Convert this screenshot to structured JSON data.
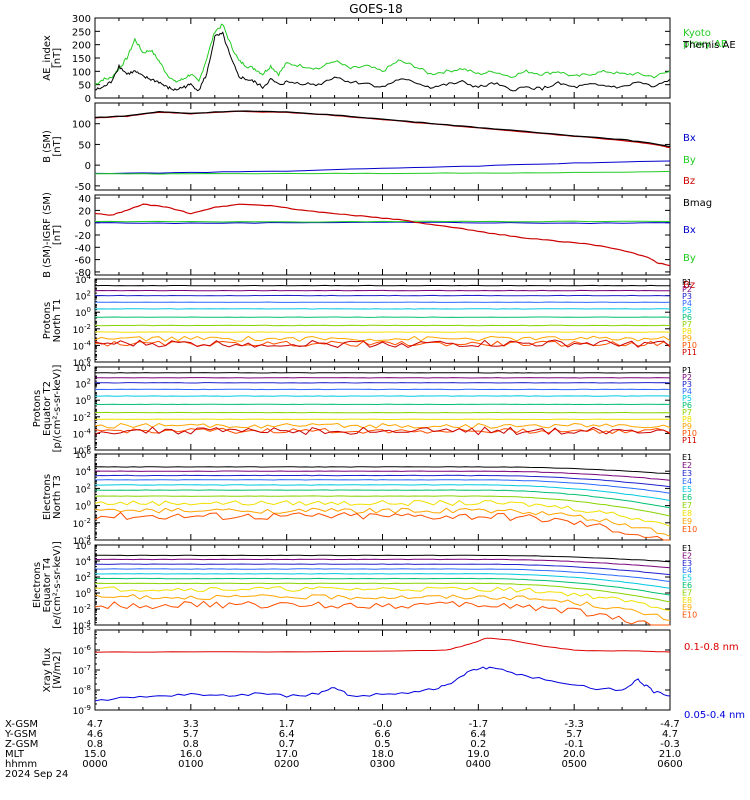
{
  "title": "GOES-18",
  "colors": {
    "ae_themis": "#000000",
    "ae_kyoto": "#22cc22",
    "bx": "#0000cc",
    "by": "#22cc22",
    "bz": "#cc0000",
    "bmag": "#000000",
    "xray_long": "#dd0000",
    "xray_short": "#0000dd"
  },
  "spectral_colors": [
    "#000000",
    "#7a007a",
    "#2020cc",
    "#2a6aff",
    "#00c8e0",
    "#00c070",
    "#88d400",
    "#f0e000",
    "#ffa500",
    "#ff5000",
    "#cc0000"
  ],
  "chart_data": [
    {
      "id": "ae",
      "type": "line",
      "ylabel": [
        "AE_index",
        "[nT]"
      ],
      "ylim": [
        0,
        300
      ],
      "yticks": [
        0,
        50,
        100,
        150,
        200,
        250,
        300
      ],
      "series": [
        {
          "name": "Kyoto proxy AE",
          "label_lines": [
            "Kyoto",
            "proxy AE"
          ],
          "color_key": "ae_kyoto",
          "x": [
            0,
            5,
            10,
            15,
            20,
            25,
            30,
            35,
            40,
            45,
            50,
            55,
            60,
            65,
            70,
            75,
            80,
            85,
            90,
            95,
            100,
            105,
            110,
            115,
            120,
            130,
            140,
            150,
            160,
            170,
            180,
            190,
            200,
            210,
            220,
            230,
            240,
            250,
            260,
            270,
            280,
            290,
            300,
            310,
            320,
            330,
            340,
            350,
            360
          ],
          "y": [
            50,
            70,
            75,
            110,
            150,
            220,
            170,
            180,
            140,
            90,
            60,
            70,
            90,
            60,
            150,
            250,
            275,
            200,
            140,
            120,
            110,
            90,
            120,
            90,
            130,
            120,
            110,
            140,
            110,
            120,
            100,
            140,
            120,
            90,
            100,
            110,
            90,
            100,
            80,
            100,
            90,
            100,
            80,
            90,
            100,
            90,
            90,
            80,
            100
          ]
        },
        {
          "name": "Themis AE",
          "label_lines": [
            "Themis AE"
          ],
          "color_key": "ae_themis",
          "x": [
            0,
            5,
            10,
            15,
            20,
            25,
            30,
            35,
            40,
            45,
            50,
            55,
            60,
            65,
            70,
            75,
            80,
            85,
            90,
            95,
            100,
            105,
            110,
            115,
            120,
            130,
            140,
            150,
            160,
            170,
            180,
            190,
            200,
            210,
            220,
            230,
            240,
            250,
            260,
            270,
            280,
            290,
            300,
            310,
            320,
            330,
            340,
            350,
            360
          ],
          "y": [
            30,
            40,
            60,
            120,
            90,
            100,
            80,
            70,
            60,
            40,
            30,
            40,
            50,
            30,
            90,
            230,
            240,
            150,
            80,
            70,
            60,
            40,
            70,
            50,
            60,
            55,
            50,
            80,
            60,
            55,
            40,
            70,
            60,
            40,
            50,
            60,
            40,
            55,
            30,
            40,
            35,
            55,
            40,
            50,
            45,
            40,
            60,
            40,
            70
          ]
        }
      ]
    },
    {
      "id": "bsm",
      "type": "line",
      "ylabel": [
        "B (SM)",
        "[nT]"
      ],
      "ylim": [
        -60,
        150
      ],
      "yticks": [
        -50,
        0,
        50,
        100
      ],
      "series": [
        {
          "name": "Bx",
          "color_key": "bx",
          "x": [
            0,
            60,
            120,
            180,
            240,
            300,
            360
          ],
          "y": [
            -20,
            -18,
            -14,
            -8,
            -2,
            5,
            10
          ]
        },
        {
          "name": "By",
          "color_key": "by",
          "x": [
            0,
            60,
            120,
            180,
            240,
            300,
            360
          ],
          "y": [
            -21,
            -21,
            -20,
            -20,
            -19,
            -18,
            -15
          ]
        },
        {
          "name": "Bz",
          "color_key": "bz",
          "x": [
            0,
            20,
            40,
            60,
            90,
            120,
            150,
            180,
            210,
            240,
            270,
            300,
            330,
            350,
            360
          ],
          "y": [
            114,
            118,
            128,
            124,
            130,
            127,
            120,
            110,
            100,
            90,
            80,
            70,
            60,
            50,
            42
          ]
        },
        {
          "name": "Bmag",
          "color_key": "bmag",
          "x": [
            0,
            20,
            40,
            60,
            90,
            120,
            150,
            180,
            210,
            240,
            270,
            300,
            330,
            350,
            360
          ],
          "y": [
            115,
            119,
            129,
            125,
            131,
            128,
            121,
            111,
            101,
            91,
            81,
            71,
            62,
            52,
            45
          ]
        }
      ]
    },
    {
      "id": "bigrf",
      "type": "line",
      "ylabel": [
        "B (SM)-IGRF (SM)",
        "[nT]"
      ],
      "ylim": [
        -85,
        45
      ],
      "yticks": [
        -80,
        -60,
        -40,
        -20,
        0,
        20,
        40
      ],
      "series": [
        {
          "name": "Bx",
          "color_key": "bx",
          "x": [
            0,
            60,
            120,
            180,
            240,
            300,
            360
          ],
          "y": [
            0,
            -1,
            0,
            1,
            0,
            -1,
            0
          ]
        },
        {
          "name": "By",
          "color_key": "by",
          "x": [
            0,
            60,
            120,
            180,
            240,
            300,
            360
          ],
          "y": [
            2,
            2,
            1,
            2,
            2,
            2,
            2
          ]
        },
        {
          "name": "Bz",
          "color_key": "bz",
          "x": [
            0,
            10,
            20,
            30,
            45,
            60,
            75,
            90,
            110,
            130,
            150,
            170,
            190,
            210,
            230,
            250,
            270,
            290,
            310,
            330,
            345,
            352,
            360
          ],
          "y": [
            15,
            12,
            20,
            30,
            25,
            15,
            25,
            30,
            28,
            20,
            15,
            10,
            5,
            -3,
            -10,
            -18,
            -25,
            -30,
            -35,
            -45,
            -55,
            -65,
            -70
          ]
        }
      ]
    },
    {
      "id": "protons_t1",
      "type": "line",
      "log": true,
      "ylabel": [
        "Protons",
        "North T1"
      ],
      "ylim_exp": [
        -6,
        4
      ],
      "yticks_exp": [
        -6,
        -4,
        -2,
        0,
        2,
        4
      ],
      "channels": [
        "P1",
        "P2",
        "P3",
        "P4",
        "P5",
        "P6",
        "P7",
        "P8",
        "P9",
        "P10",
        "P11"
      ],
      "levels_exp": [
        3.2,
        2.6,
        2.0,
        1.2,
        0.4,
        -0.6,
        -1.6,
        -2.4,
        -3.2,
        -3.8,
        -3.8
      ]
    },
    {
      "id": "protons_t2",
      "type": "line",
      "log": true,
      "ylabel": [
        "Protons",
        "Equator T2",
        "[p/(cm²-s-sr-keV)]"
      ],
      "ylim_exp": [
        -6,
        4
      ],
      "yticks_exp": [
        -6,
        -4,
        -2,
        0,
        2,
        4
      ],
      "channels": [
        "P1",
        "P2",
        "P3",
        "P4",
        "P5",
        "P6",
        "P7",
        "P8",
        "P9",
        "P10",
        "P11"
      ],
      "levels_exp": [
        3.3,
        2.7,
        2.1,
        1.3,
        0.5,
        -0.5,
        -1.5,
        -2.3,
        -3.1,
        -3.7,
        -3.7
      ]
    },
    {
      "id": "electrons_t3",
      "type": "line",
      "log": true,
      "ylabel": [
        "Electrons",
        "North T3"
      ],
      "ylim_exp": [
        -4,
        6
      ],
      "yticks_exp": [
        -4,
        -2,
        0,
        2,
        4,
        6
      ],
      "channels": [
        "E1",
        "E2",
        "E3",
        "E4",
        "E5",
        "E6",
        "E7",
        "E8",
        "E9",
        "E10"
      ],
      "levels_exp": [
        4.5,
        4.0,
        3.5,
        3.0,
        2.4,
        1.8,
        1.1,
        0.3,
        -0.6,
        -1.2
      ]
    },
    {
      "id": "electrons_t4",
      "type": "line",
      "log": true,
      "ylabel": [
        "Electrons",
        "Equator T4",
        "[e/(cm²-s-sr-keV)]"
      ],
      "ylim_exp": [
        -4,
        6
      ],
      "yticks_exp": [
        -4,
        -2,
        0,
        2,
        4,
        6
      ],
      "channels": [
        "E1",
        "E2",
        "E3",
        "E4",
        "E5",
        "E6",
        "E7",
        "E8",
        "E9",
        "E10"
      ],
      "levels_exp": [
        4.7,
        4.2,
        3.6,
        3.0,
        2.4,
        1.8,
        1.2,
        0.5,
        -0.5,
        -1.5
      ]
    },
    {
      "id": "xray",
      "type": "line",
      "log": true,
      "ylabel": [
        "Xray flux",
        "[W/m2]"
      ],
      "ylim_exp": [
        -9,
        -5
      ],
      "yticks_exp": [
        -9,
        -8,
        -7,
        -6,
        -5
      ],
      "series": [
        {
          "name": "0.1-0.8 nm",
          "color_key": "xray_long",
          "x": [
            0,
            60,
            120,
            180,
            220,
            235,
            245,
            260,
            280,
            300,
            320,
            340,
            360
          ],
          "y_exp": [
            -6.1,
            -6.1,
            -6.1,
            -6.05,
            -6.0,
            -5.7,
            -5.4,
            -5.5,
            -5.8,
            -6.0,
            -6.05,
            -6.05,
            -6.1
          ]
        },
        {
          "name": "0.05-0.4 nm",
          "color_key": "xray_short",
          "x": [
            0,
            20,
            40,
            60,
            80,
            100,
            120,
            140,
            150,
            160,
            180,
            200,
            215,
            225,
            235,
            245,
            255,
            270,
            290,
            310,
            330,
            340,
            345,
            350,
            360
          ],
          "y_exp": [
            -8.5,
            -8.4,
            -8.3,
            -8.2,
            -8.3,
            -8.2,
            -8.3,
            -8.2,
            -7.9,
            -8.3,
            -8.2,
            -8.1,
            -7.9,
            -7.6,
            -7.0,
            -6.9,
            -7.0,
            -7.3,
            -7.6,
            -7.9,
            -8.0,
            -7.5,
            -7.8,
            -8.1,
            -8.3
          ]
        }
      ]
    }
  ],
  "xaxis": {
    "row_labels": [
      "X-GSM",
      "Y-GSM",
      "Z-GSM",
      "MLT",
      "hhmm"
    ],
    "columns": [
      [
        "4.7",
        "4.6",
        "0.8",
        "15.0",
        "0000"
      ],
      [
        "3.3",
        "5.7",
        "0.8",
        "16.0",
        "0100"
      ],
      [
        "1.7",
        "6.4",
        "0.7",
        "17.0",
        "0200"
      ],
      [
        "-0.0",
        "6.6",
        "0.5",
        "18.0",
        "0300"
      ],
      [
        "-1.7",
        "6.4",
        "0.2",
        "19.0",
        "0400"
      ],
      [
        "-3.3",
        "5.7",
        "-0.1",
        "20.0",
        "0500"
      ],
      [
        "-4.7",
        "4.7",
        "-0.3",
        "21.0",
        "0600"
      ]
    ],
    "date": "2024 Sep 24"
  }
}
